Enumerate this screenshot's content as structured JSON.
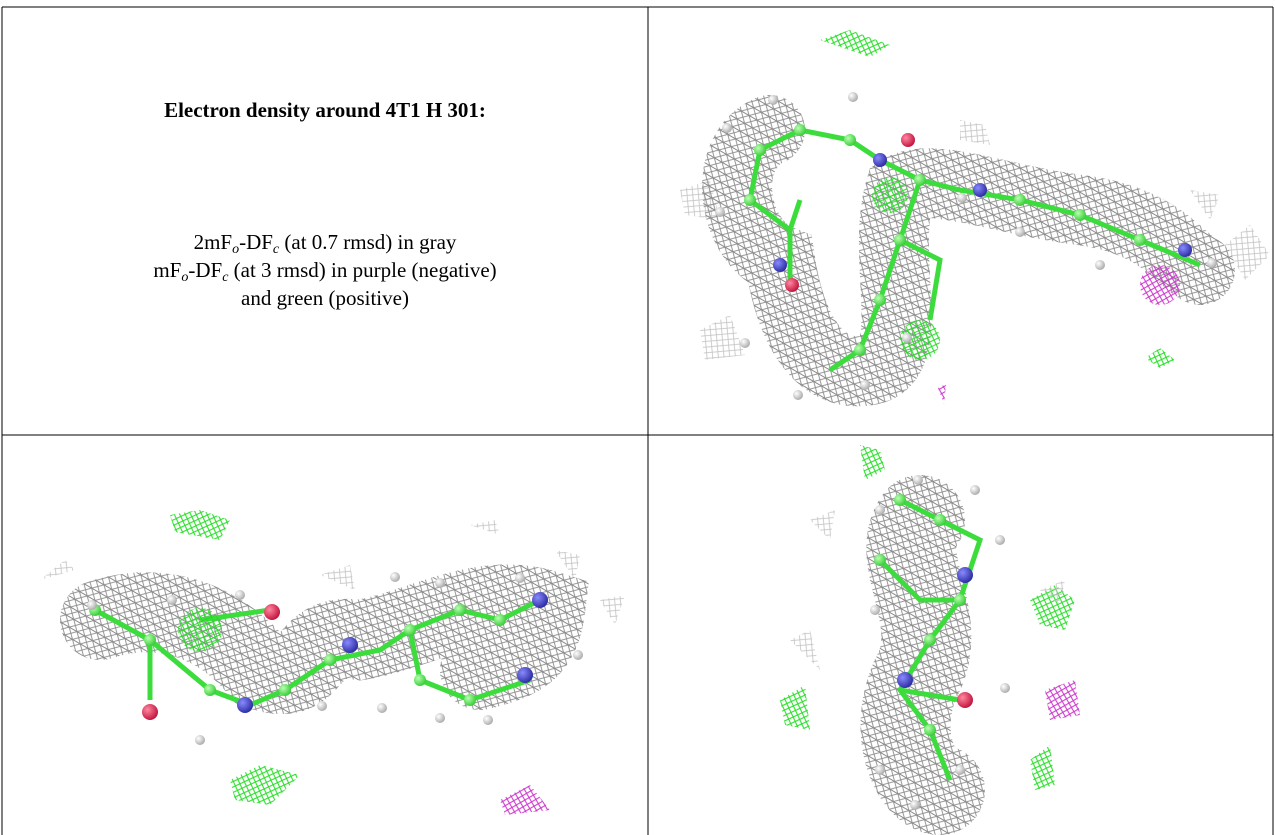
{
  "caption": {
    "title": "Electron density around 4T1 H 301:",
    "lines": [
      [
        "2mF",
        "o",
        "-DF",
        "c",
        " (at 0.7 rmsd) in gray"
      ],
      [
        "mF",
        "o",
        "-DF",
        "c",
        " (at 3 rmsd) in purple (negative)"
      ],
      [
        "and green (positive)"
      ]
    ]
  }
}
